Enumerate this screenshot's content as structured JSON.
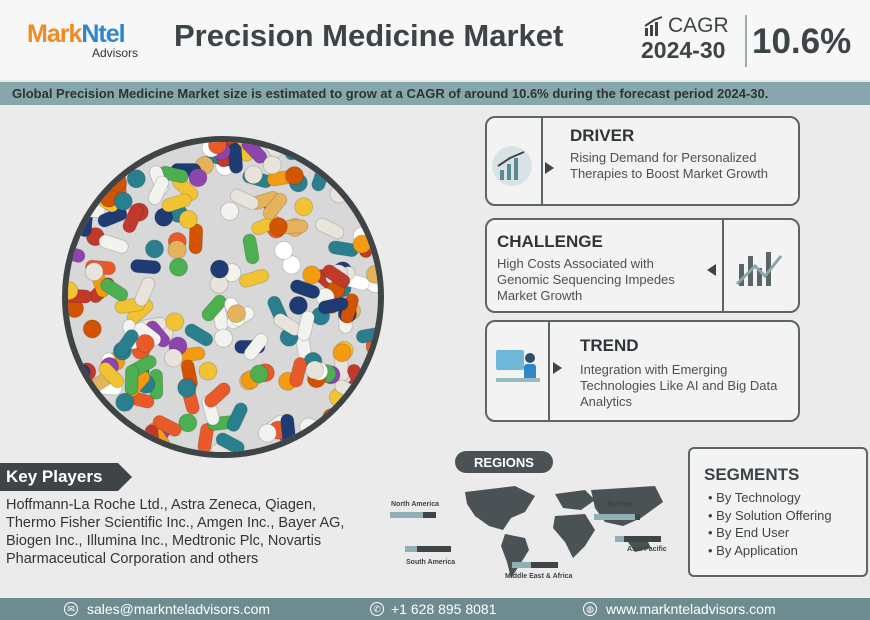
{
  "header": {
    "logo_main_1": "Mark",
    "logo_main_2": "Ntel",
    "logo_sub": "Advisors",
    "title": "Precision Medicine Market",
    "cagr_label": "CAGR",
    "cagr_period": "2024-30",
    "cagr_value": "10.6%"
  },
  "banner": "Global Precision Medicine Market size is estimated to grow at a CAGR of around 10.6% during the forecast period 2024-30.",
  "driver": {
    "title": "DRIVER",
    "text": "Rising Demand for Personalized Therapies to Boost Market Growth",
    "icon": "market-growth-icon"
  },
  "challenge": {
    "title": "CHALLENGE",
    "text": "High Costs Associated with Genomic Sequencing Impedes Market Growth",
    "icon": "chart-decline-icon"
  },
  "trend": {
    "title": "TREND",
    "text": "Integration with Emerging Technologies Like AI and Big Data Analytics",
    "icon": "data-analyst-icon"
  },
  "key_players": {
    "label": "Key Players",
    "text": "Hoffmann-La Roche Ltd., Astra Zeneca, Qiagen, Thermo Fisher Scientific Inc., Amgen Inc., Bayer AG, Biogen Inc., Illumina Inc., Medtronic Plc, Novartis Pharmaceutical Corporation and others"
  },
  "regions": {
    "label": "REGIONS",
    "items": [
      {
        "name": "North America",
        "share": 0.72
      },
      {
        "name": "Europe",
        "share": 0.9
      },
      {
        "name": "South America",
        "share": 0.25
      },
      {
        "name": "Middle East & Africa",
        "share": 0.42
      },
      {
        "name": "Asia-Pacific",
        "share": 0.2
      }
    ]
  },
  "segments": {
    "title": "SEGMENTS",
    "items": [
      "By Technology",
      "By Solution Offering",
      "By End User",
      "By Application"
    ]
  },
  "footer": {
    "email": "sales@marknteladvisors.com",
    "phone": "+1 628 895 8081",
    "website": "www.marknteladvisors.com"
  },
  "colors": {
    "dark": "#3f4547",
    "teal": "#86a7ab",
    "orange": "#f08a24",
    "blue": "#2f86c9",
    "footer": "#6e8c90"
  }
}
